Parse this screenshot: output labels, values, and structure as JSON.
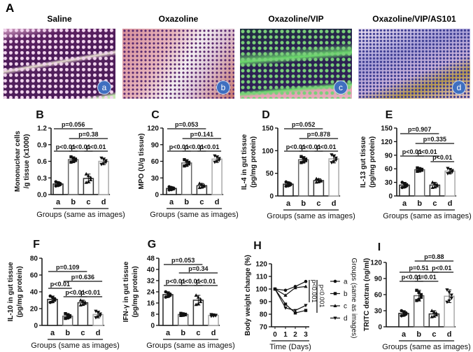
{
  "panel_a": {
    "letter": "A",
    "images": [
      {
        "title": "Saline",
        "badge": "a"
      },
      {
        "title": "Oxazoline",
        "badge": "b"
      },
      {
        "title": "Oxazoline/VIP",
        "badge": "c"
      },
      {
        "title": "Oxazoline/VIP/AS101",
        "badge": "d"
      }
    ]
  },
  "chart_data": [
    {
      "panel": "B",
      "type": "bar",
      "categories": [
        "a",
        "b",
        "c",
        "d"
      ],
      "values": [
        0.19,
        0.63,
        0.29,
        0.6
      ],
      "sd": [
        0.04,
        0.05,
        0.08,
        0.06
      ],
      "ylabel": [
        "Mononuclear cells",
        "/g tissue (x1000)"
      ],
      "xlabel": "Groups (same as images)",
      "ylim": [
        0,
        1.2
      ],
      "yticks": [
        "0.0",
        "0.3",
        "0.6",
        "0.9",
        "1.2"
      ],
      "comparisons": [
        {
          "pair": [
            "a",
            "b"
          ],
          "label": "p<0.01"
        },
        {
          "pair": [
            "b",
            "c"
          ],
          "label": "p<0.01"
        },
        {
          "pair": [
            "c",
            "d"
          ],
          "label": "p<0.01"
        },
        {
          "pair": [
            "b",
            "d"
          ],
          "label": "p=0.38"
        },
        {
          "pair": [
            "a",
            "c"
          ],
          "label": "p=0.056"
        }
      ]
    },
    {
      "panel": "C",
      "type": "bar",
      "categories": [
        "a",
        "b",
        "c",
        "d"
      ],
      "values": [
        11,
        57,
        16,
        64
      ],
      "sd": [
        3,
        6,
        4,
        6
      ],
      "ylabel": [
        "MPO (U/g tissue)"
      ],
      "xlabel": "Groups (same as images)",
      "ylim": [
        0,
        120
      ],
      "yticks": [
        "0",
        "30",
        "60",
        "90",
        "120"
      ],
      "comparisons": [
        {
          "pair": [
            "a",
            "b"
          ],
          "label": "p<0.01"
        },
        {
          "pair": [
            "b",
            "c"
          ],
          "label": "p<0.01"
        },
        {
          "pair": [
            "c",
            "d"
          ],
          "label": "p<0.01"
        },
        {
          "pair": [
            "b",
            "d"
          ],
          "label": "p=0.141"
        },
        {
          "pair": [
            "a",
            "c"
          ],
          "label": "p=0.053"
        }
      ]
    },
    {
      "panel": "D",
      "type": "bar",
      "categories": [
        "a",
        "b",
        "c",
        "d"
      ],
      "values": [
        26,
        80,
        34,
        82
      ],
      "sd": [
        5,
        7,
        4,
        9
      ],
      "ylabel": [
        "IL-4 in gut tissue",
        "(pg/mg protein)"
      ],
      "xlabel": "Groups (same as images)",
      "ylim": [
        0,
        150
      ],
      "yticks": [
        "0",
        "50",
        "100",
        "150"
      ],
      "comparisons": [
        {
          "pair": [
            "a",
            "b"
          ],
          "label": "p<0.01"
        },
        {
          "pair": [
            "b",
            "c"
          ],
          "label": "p<0.01"
        },
        {
          "pair": [
            "c",
            "d"
          ],
          "label": "p<0.01"
        },
        {
          "pair": [
            "b",
            "d"
          ],
          "label": "p=0.878"
        },
        {
          "pair": [
            "a",
            "c"
          ],
          "label": "p=0.052"
        }
      ]
    },
    {
      "panel": "E",
      "type": "bar",
      "categories": [
        "a",
        "b",
        "c",
        "d"
      ],
      "values": [
        24,
        58,
        24,
        55
      ],
      "sd": [
        6,
        4,
        6,
        6
      ],
      "ylabel": [
        "IL-13 gut tissue",
        "(pg/mg protein)"
      ],
      "xlabel": "Groups (same as images)",
      "ylim": [
        0,
        150
      ],
      "yticks": [
        "0",
        "30",
        "60",
        "90",
        "120",
        "150"
      ],
      "comparisons": [
        {
          "pair": [
            "a",
            "b"
          ],
          "label": "p<0.01"
        },
        {
          "pair": [
            "b",
            "c"
          ],
          "label": "p<0.01"
        },
        {
          "pair": [
            "c",
            "d"
          ],
          "label": "p<0.01"
        },
        {
          "pair": [
            "b",
            "d"
          ],
          "label": "p=0.335"
        },
        {
          "pair": [
            "a",
            "c"
          ],
          "label": "p=0.907"
        }
      ]
    },
    {
      "panel": "F",
      "type": "bar",
      "categories": [
        "a",
        "b",
        "c",
        "d"
      ],
      "values": [
        31,
        11,
        27,
        13
      ],
      "sd": [
        4,
        3,
        3,
        4
      ],
      "ylabel": [
        "IL-10 in gut tissue",
        "(pg/mg protein)"
      ],
      "xlabel": "Groups (same as images)",
      "ylim": [
        0,
        80
      ],
      "yticks": [
        "0",
        "20",
        "40",
        "60",
        "80"
      ],
      "comparisons": [
        {
          "pair": [
            "a",
            "b"
          ],
          "label": "p<0.01"
        },
        {
          "pair": [
            "b",
            "c"
          ],
          "label": "p<0.01"
        },
        {
          "pair": [
            "c",
            "d"
          ],
          "label": "p<0.01"
        },
        {
          "pair": [
            "b",
            "d"
          ],
          "label": "p=0.636"
        },
        {
          "pair": [
            "a",
            "c"
          ],
          "label": "p=0.109"
        }
      ]
    },
    {
      "panel": "G",
      "type": "bar",
      "categories": [
        "a",
        "b",
        "c",
        "d"
      ],
      "values": [
        22,
        7.8,
        18,
        7.2
      ],
      "sd": [
        2,
        0.8,
        3.5,
        0.6
      ],
      "ylabel": [
        "IFN-γ in gut tissue",
        "(pg/mg protein)"
      ],
      "xlabel": "Groups (same as images)",
      "ylim": [
        0,
        48
      ],
      "yticks": [
        "0",
        "8",
        "16",
        "24",
        "32",
        "40",
        "48"
      ],
      "comparisons": [
        {
          "pair": [
            "a",
            "b"
          ],
          "label": "p<0.01"
        },
        {
          "pair": [
            "b",
            "c"
          ],
          "label": "p<0.01"
        },
        {
          "pair": [
            "c",
            "d"
          ],
          "label": "p<0.01"
        },
        {
          "pair": [
            "b",
            "d"
          ],
          "label": "p=0.34"
        },
        {
          "pair": [
            "a",
            "c"
          ],
          "label": "p=0.053"
        }
      ]
    },
    {
      "panel": "H",
      "type": "line",
      "x": [
        0,
        1,
        2,
        3
      ],
      "xticks": [
        "0",
        "1",
        "2",
        "3"
      ],
      "series": [
        {
          "name": "a",
          "values": [
            100,
            99,
            102,
            106
          ]
        },
        {
          "name": "b",
          "values": [
            100,
            88,
            81,
            83
          ]
        },
        {
          "name": "c",
          "values": [
            100,
            95,
            101,
            102
          ]
        },
        {
          "name": "d",
          "values": [
            100,
            85,
            83,
            87
          ]
        }
      ],
      "ylabel": [
        "Body weight change (%)"
      ],
      "xlabel": "Time (Days)",
      "ylim": [
        70,
        120
      ],
      "yticks": [
        "70",
        "80",
        "90",
        "100",
        "110",
        "120"
      ],
      "legend_title": "Groups (same as images)",
      "legend_position": "right",
      "annotations": [
        "p<0.001",
        "p<0.001"
      ]
    },
    {
      "panel": "I",
      "type": "bar",
      "categories": [
        "a",
        "b",
        "c",
        "d"
      ],
      "values": [
        25,
        58,
        24,
        57
      ],
      "sd": [
        5,
        10,
        6,
        12
      ],
      "ylabel": [
        "TRITC dextran (ng/ml)"
      ],
      "xlabel": "Groups (same as images)",
      "ylim": [
        0,
        120
      ],
      "yticks": [
        "0",
        "30",
        "60",
        "90",
        "120"
      ],
      "comparisons": [
        {
          "pair": [
            "a",
            "b"
          ],
          "label": "p<0.01"
        },
        {
          "pair": [
            "b",
            "c"
          ],
          "label": "p=0.01"
        },
        {
          "pair": [
            "c",
            "d"
          ],
          "label": "p<0.01"
        },
        {
          "pair": [
            "a",
            "c"
          ],
          "label": "p=0.51"
        },
        {
          "pair": [
            "b",
            "d"
          ],
          "label": "p=0.88"
        }
      ]
    }
  ]
}
